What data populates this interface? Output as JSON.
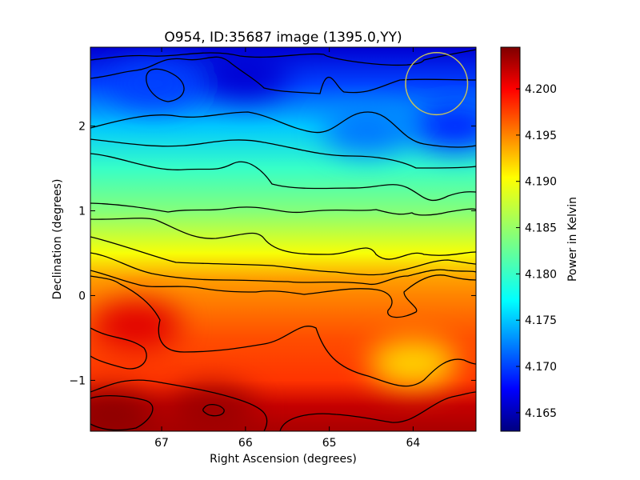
{
  "chart_data": {
    "type": "heatmap",
    "title": "O954, ID:35687 image (1395.0,YY)",
    "xlabel": "Right Ascension (degrees)",
    "ylabel": "Declination (degrees)",
    "xlim": [
      67.85,
      63.25
    ],
    "ylim": [
      -1.6,
      2.93
    ],
    "x_ticks": [
      67,
      66,
      65,
      64
    ],
    "x_tick_labels": [
      "67",
      "66",
      "65",
      "64"
    ],
    "y_ticks": [
      2,
      1,
      0,
      -1
    ],
    "y_tick_labels": [
      "2",
      "1",
      "0",
      "−1"
    ],
    "colorbar": {
      "label": "Power in Kelvin",
      "range": [
        4.163,
        4.2045
      ],
      "ticks": [
        4.165,
        4.17,
        4.175,
        4.18,
        4.185,
        4.19,
        4.195,
        4.2
      ],
      "tick_labels": [
        "4.165",
        "4.170",
        "4.175",
        "4.180",
        "4.185",
        "4.190",
        "4.195",
        "4.200"
      ],
      "colormap": "jet"
    },
    "field_profile": [
      {
        "dec": 2.93,
        "value": 4.166
      },
      {
        "dec": 2.5,
        "value": 4.17
      },
      {
        "dec": 2.0,
        "value": 4.175
      },
      {
        "dec": 1.5,
        "value": 4.18
      },
      {
        "dec": 1.0,
        "value": 4.184
      },
      {
        "dec": 0.5,
        "value": 4.19
      },
      {
        "dec": 0.2,
        "value": 4.194
      },
      {
        "dec": 0.0,
        "value": 4.195
      },
      {
        "dec": -0.5,
        "value": 4.197
      },
      {
        "dec": -1.0,
        "value": 4.198
      },
      {
        "dec": -1.3,
        "value": 4.202
      },
      {
        "dec": -1.6,
        "value": 4.203
      }
    ],
    "features": [
      {
        "kind": "cold-blob",
        "ra": 66.0,
        "dec": 2.6,
        "value": 4.166
      },
      {
        "kind": "cold-blob",
        "ra": 67.1,
        "dec": 2.5,
        "value": 4.17
      },
      {
        "kind": "cold-blob",
        "ra": 64.55,
        "dec": 1.95,
        "value": 4.172
      },
      {
        "kind": "cold-blob",
        "ra": 63.5,
        "dec": 2.0,
        "value": 4.169
      },
      {
        "kind": "hot-blob",
        "ra": 67.6,
        "dec": -1.4,
        "value": 4.204
      },
      {
        "kind": "hot-blob",
        "ra": 66.4,
        "dec": -1.35,
        "value": 4.2035
      },
      {
        "kind": "hot-blob",
        "ra": 67.3,
        "dec": -0.35,
        "value": 4.201
      },
      {
        "kind": "warm-blob",
        "ra": 64.0,
        "dec": -0.8,
        "value": 4.192
      }
    ],
    "circle": {
      "ra": 63.72,
      "dec": 2.5,
      "radius_deg": 0.37,
      "color": "#c8c35a"
    }
  }
}
